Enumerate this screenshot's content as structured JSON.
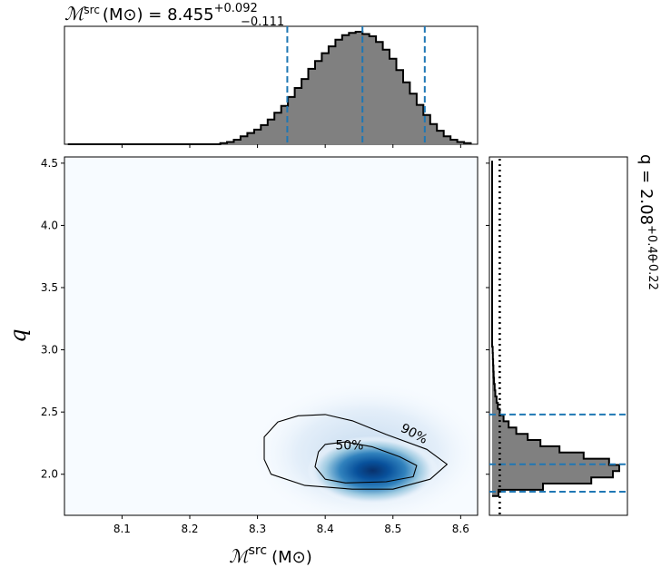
{
  "chart_data": {
    "type": "heatmap",
    "top_title": {
      "symbol": "ℳ",
      "sup": "src",
      "unit": "(M⊙) = 8.455",
      "plus": "+0.092",
      "minus": "−0.111"
    },
    "right_title": {
      "text": "q = 2.08",
      "plus": "+0.40",
      "minus": "−0.22"
    },
    "xlabel": {
      "symbol": "ℳ",
      "sup": "src",
      "unit": "(M⊙)"
    },
    "ylabel": "q",
    "xlim": [
      8.015,
      8.625
    ],
    "ylim": [
      1.67,
      4.55
    ],
    "xticks": [
      8.1,
      8.2,
      8.3,
      8.4,
      8.5,
      8.6
    ],
    "xtick_labels": [
      "8.1",
      "8.2",
      "8.3",
      "8.4",
      "8.5",
      "8.6"
    ],
    "yticks": [
      2.0,
      2.5,
      3.0,
      3.5,
      4.0,
      4.5
    ],
    "ytick_labels": [
      "2.0",
      "2.5",
      "3.0",
      "3.5",
      "4.0",
      "4.5"
    ],
    "density_peak": {
      "x": 8.47,
      "y": 2.03
    },
    "contours": [
      {
        "label": "50%",
        "points": [
          [
            8.39,
            2.18
          ],
          [
            8.4,
            2.24
          ],
          [
            8.43,
            2.26
          ],
          [
            8.47,
            2.22
          ],
          [
            8.51,
            2.14
          ],
          [
            8.535,
            2.07
          ],
          [
            8.53,
            1.98
          ],
          [
            8.49,
            1.94
          ],
          [
            8.43,
            1.93
          ],
          [
            8.4,
            1.96
          ],
          [
            8.385,
            2.06
          ]
        ]
      },
      {
        "label": "90%",
        "points": [
          [
            8.33,
            2.42
          ],
          [
            8.36,
            2.47
          ],
          [
            8.4,
            2.48
          ],
          [
            8.44,
            2.43
          ],
          [
            8.49,
            2.32
          ],
          [
            8.55,
            2.2
          ],
          [
            8.58,
            2.08
          ],
          [
            8.555,
            1.96
          ],
          [
            8.5,
            1.88
          ],
          [
            8.44,
            1.88
          ],
          [
            8.37,
            1.91
          ],
          [
            8.32,
            2.0
          ],
          [
            8.31,
            2.12
          ],
          [
            8.31,
            2.3
          ]
        ]
      }
    ],
    "top_hist": {
      "bins": [
        8.25,
        8.26,
        8.27,
        8.28,
        8.29,
        8.3,
        8.31,
        8.32,
        8.33,
        8.34,
        8.35,
        8.36,
        8.37,
        8.38,
        8.39,
        8.4,
        8.41,
        8.42,
        8.43,
        8.44,
        8.45,
        8.46,
        8.47,
        8.48,
        8.49,
        8.5,
        8.51,
        8.52,
        8.53,
        8.54,
        8.55,
        8.56,
        8.57,
        8.58,
        8.59,
        8.6,
        8.61
      ],
      "counts": [
        0.01,
        0.02,
        0.04,
        0.07,
        0.1,
        0.13,
        0.17,
        0.22,
        0.28,
        0.34,
        0.42,
        0.5,
        0.58,
        0.67,
        0.74,
        0.81,
        0.87,
        0.93,
        0.97,
        0.99,
        1.0,
        0.98,
        0.96,
        0.91,
        0.84,
        0.76,
        0.66,
        0.55,
        0.45,
        0.35,
        0.26,
        0.18,
        0.12,
        0.07,
        0.04,
        0.02,
        0.01
      ],
      "quantiles": [
        8.344,
        8.455,
        8.547
      ]
    },
    "right_hist": {
      "bins": [
        1.85,
        1.9,
        1.95,
        2.0,
        2.05,
        2.1,
        2.15,
        2.2,
        2.25,
        2.3,
        2.35,
        2.4,
        2.45,
        2.5,
        2.55,
        2.6,
        2.65,
        2.7,
        2.75,
        2.8,
        2.85,
        2.9,
        2.95,
        3.0
      ],
      "counts": [
        0.05,
        0.4,
        0.78,
        0.95,
        1.0,
        0.92,
        0.72,
        0.53,
        0.38,
        0.28,
        0.19,
        0.13,
        0.09,
        0.06,
        0.045,
        0.035,
        0.025,
        0.02,
        0.015,
        0.012,
        0.01,
        0.008,
        0.006,
        0.004
      ],
      "quantiles": [
        1.86,
        2.08,
        2.48
      ],
      "dotted_line": 0.06
    }
  }
}
